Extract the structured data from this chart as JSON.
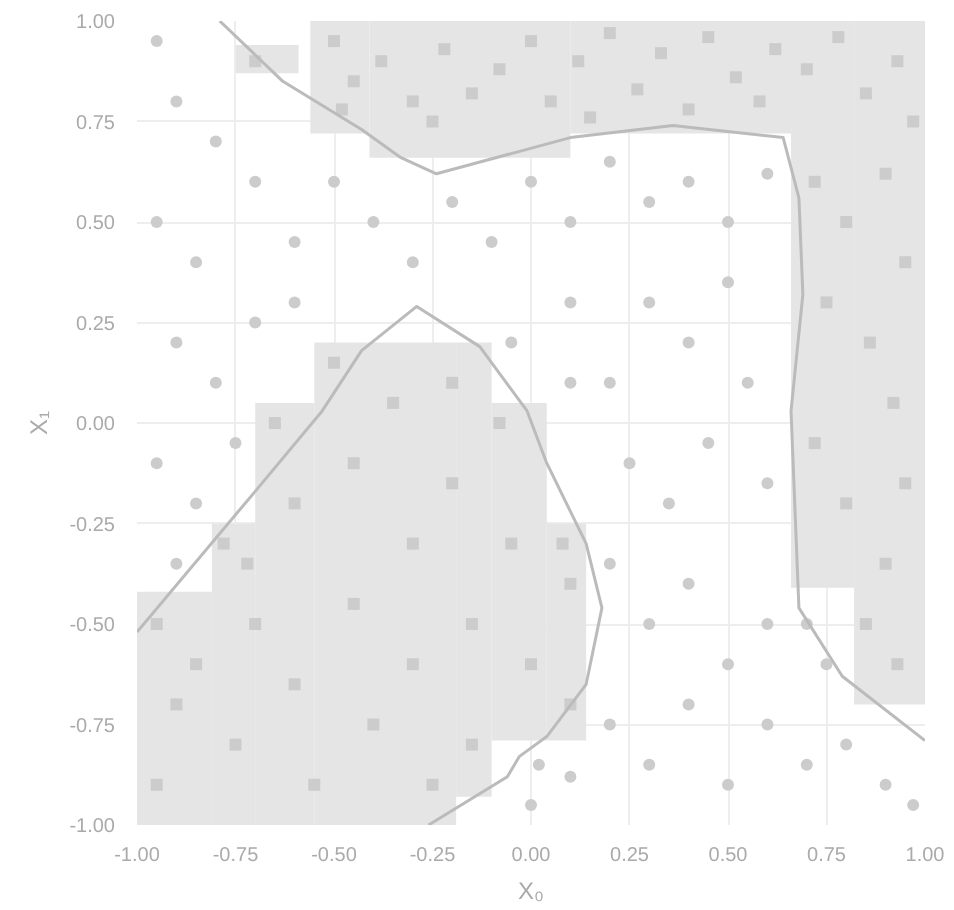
{
  "chart_data": {
    "type": "scatter",
    "xlabel": "X₀",
    "ylabel": "X₁",
    "xlim": [
      -1.0,
      1.0
    ],
    "ylim": [
      -1.0,
      1.0
    ],
    "xticks": [
      {
        "value": -1.0,
        "label": "-1.00"
      },
      {
        "value": -0.75,
        "label": "-0.75"
      },
      {
        "value": -0.5,
        "label": "-0.50"
      },
      {
        "value": -0.25,
        "label": "-0.25"
      },
      {
        "value": 0.0,
        "label": "0.00"
      },
      {
        "value": 0.25,
        "label": "0.25"
      },
      {
        "value": 0.5,
        "label": "0.50"
      },
      {
        "value": 0.75,
        "label": "0.75"
      },
      {
        "value": 1.0,
        "label": "1.00"
      }
    ],
    "yticks": [
      {
        "value": -1.0,
        "label": "-1.00"
      },
      {
        "value": -0.75,
        "label": "-0.75"
      },
      {
        "value": -0.5,
        "label": "-0.50"
      },
      {
        "value": -0.25,
        "label": "-0.25"
      },
      {
        "value": 0.0,
        "label": "0.00"
      },
      {
        "value": 0.25,
        "label": "0.25"
      },
      {
        "value": 0.5,
        "label": "0.50"
      },
      {
        "value": 0.75,
        "label": "0.75"
      },
      {
        "value": 1.0,
        "label": "1.00"
      }
    ],
    "grid": true,
    "series": [
      {
        "type": "histogram",
        "color": "#e5e5e5",
        "bins": [
          -1.0,
          -0.81,
          -0.7,
          -0.55,
          -0.19,
          -0.1,
          0.04,
          0.14
        ],
        "base": [
          -1.0,
          -1.0,
          -1.0,
          -1.0,
          -0.93,
          -0.79,
          -0.79
        ],
        "values": [
          0.58,
          0.75,
          1.05,
          1.2,
          1.13,
          0.84,
          0.54
        ]
      },
      {
        "type": "histogram",
        "color": "#e5e5e5",
        "bins": [
          -0.75,
          -0.59
        ],
        "base": [
          0.87
        ],
        "values": [
          0.07
        ]
      },
      {
        "type": "histogram",
        "color": "#e5e5e5",
        "bins": [
          -0.56,
          -0.41,
          0.1,
          0.66,
          0.82,
          1.0
        ],
        "base": [
          0.72,
          0.66,
          0.72,
          -0.41,
          -0.7
        ],
        "values": [
          0.28,
          0.34,
          0.28,
          1.41,
          1.7
        ]
      },
      {
        "marker": "square",
        "color": "#cccccc",
        "x": [
          -0.5,
          -0.45,
          -0.38,
          -0.3,
          -0.22,
          -0.15,
          -0.08,
          0.0,
          0.05,
          0.12,
          0.2,
          0.27,
          0.33,
          0.4,
          0.45,
          0.52,
          0.58,
          0.62,
          0.7,
          0.78,
          0.85,
          0.93,
          0.97,
          0.72,
          0.8,
          0.9,
          0.95,
          0.75,
          0.86,
          0.92,
          0.72,
          0.8,
          0.95,
          0.9,
          0.85,
          0.93,
          -0.7,
          -0.48,
          -0.25,
          0.15,
          -0.95,
          -0.9,
          -0.95,
          -0.85,
          -0.78,
          -0.75,
          -0.7,
          -0.65,
          -0.6,
          -0.6,
          -0.55,
          -0.5,
          -0.45,
          -0.45,
          -0.4,
          -0.35,
          -0.3,
          -0.3,
          -0.25,
          -0.2,
          -0.2,
          -0.15,
          -0.15,
          -0.08,
          -0.05,
          0.0,
          0.08,
          0.1,
          0.1,
          -0.72
        ],
        "values": [
          0.95,
          0.85,
          0.9,
          0.8,
          0.93,
          0.82,
          0.88,
          0.95,
          0.8,
          0.9,
          0.97,
          0.83,
          0.92,
          0.78,
          0.96,
          0.86,
          0.8,
          0.93,
          0.88,
          0.96,
          0.82,
          0.9,
          0.75,
          0.6,
          0.5,
          0.62,
          0.4,
          0.3,
          0.2,
          0.05,
          -0.05,
          -0.2,
          -0.15,
          -0.35,
          -0.5,
          -0.6,
          0.9,
          0.78,
          0.75,
          0.76,
          -0.5,
          -0.7,
          -0.9,
          -0.6,
          -0.3,
          -0.8,
          -0.5,
          0.0,
          -0.2,
          -0.65,
          -0.9,
          0.15,
          -0.1,
          -0.45,
          -0.75,
          0.05,
          -0.3,
          -0.6,
          -0.9,
          0.1,
          -0.15,
          -0.5,
          -0.8,
          0.0,
          -0.3,
          -0.6,
          -0.3,
          -0.4,
          -0.7,
          -0.35
        ]
      },
      {
        "marker": "circle",
        "color": "#cccccc",
        "x": [
          -0.95,
          -0.9,
          -0.8,
          -0.7,
          -0.95,
          -0.85,
          -0.6,
          -0.5,
          -0.4,
          -0.3,
          -0.2,
          -0.1,
          0.0,
          0.1,
          0.2,
          0.3,
          0.4,
          0.5,
          0.6,
          -0.9,
          -0.8,
          -0.7,
          -0.6,
          -0.95,
          -0.85,
          -0.9,
          -0.75,
          0.1,
          0.2,
          0.3,
          0.4,
          0.5,
          0.55,
          0.25,
          0.35,
          0.45,
          0.6,
          0.2,
          0.3,
          0.4,
          0.5,
          0.6,
          0.7,
          0.75,
          0.2,
          0.3,
          0.4,
          0.5,
          0.6,
          0.7,
          0.8,
          0.9,
          0.97,
          0.0,
          0.1,
          -0.05,
          0.1,
          0.02
        ],
        "values": [
          0.95,
          0.8,
          0.7,
          0.6,
          0.5,
          0.4,
          0.45,
          0.6,
          0.5,
          0.4,
          0.55,
          0.45,
          0.6,
          0.5,
          0.65,
          0.55,
          0.6,
          0.5,
          0.62,
          0.2,
          0.1,
          0.25,
          0.3,
          -0.1,
          -0.2,
          -0.35,
          -0.05,
          0.3,
          0.1,
          0.3,
          0.2,
          0.35,
          0.1,
          -0.1,
          -0.2,
          -0.05,
          -0.15,
          -0.35,
          -0.5,
          -0.4,
          -0.6,
          -0.5,
          -0.5,
          -0.6,
          -0.75,
          -0.85,
          -0.7,
          -0.9,
          -0.75,
          -0.85,
          -0.8,
          -0.9,
          -0.95,
          -0.95,
          -0.88,
          0.2,
          0.1,
          -0.85
        ]
      },
      {
        "type": "line",
        "color": "#bbbbbb",
        "x": [
          -0.79,
          -0.63,
          -0.43,
          -0.33,
          -0.24,
          0.1,
          0.36,
          0.64,
          0.68,
          0.69,
          0.66,
          0.68,
          0.79,
          1.0
        ],
        "values": [
          1.0,
          0.85,
          0.73,
          0.66,
          0.62,
          0.71,
          0.74,
          0.71,
          0.56,
          0.32,
          0.03,
          -0.46,
          -0.63,
          -0.79
        ]
      },
      {
        "type": "line",
        "color": "#bbbbbb",
        "x": [
          -1.0,
          -0.7,
          -0.53,
          -0.43,
          -0.29,
          -0.13,
          -0.01,
          0.04,
          0.14,
          0.18,
          0.14,
          0.04,
          -0.03,
          -0.06,
          -0.26
        ],
        "values": [
          -0.52,
          -0.17,
          0.03,
          0.18,
          0.29,
          0.19,
          0.03,
          -0.1,
          -0.3,
          -0.46,
          -0.65,
          -0.78,
          -0.83,
          -0.88,
          -1.0
        ]
      }
    ]
  }
}
